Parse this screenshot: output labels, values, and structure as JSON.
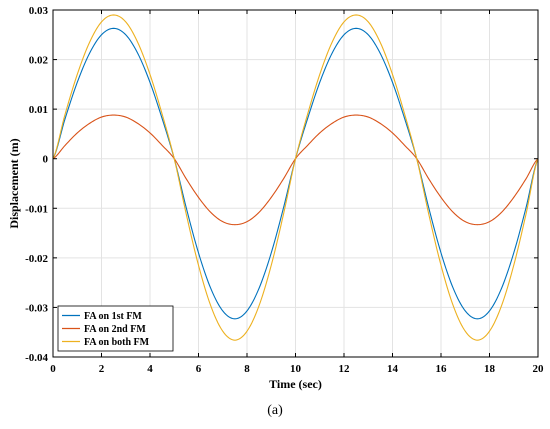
{
  "caption": "(a)",
  "chart_data": {
    "type": "line",
    "title": "",
    "xlabel": "Time (sec)",
    "ylabel": "Displacement (m)",
    "xlim": [
      0,
      20
    ],
    "ylim": [
      -0.04,
      0.03
    ],
    "x_ticks": [
      0,
      2,
      4,
      6,
      8,
      10,
      12,
      14,
      16,
      18,
      20
    ],
    "x_tick_labels": [
      "0",
      "2",
      "4",
      "6",
      "8",
      "10",
      "12",
      "14",
      "16",
      "18",
      "20"
    ],
    "y_ticks": [
      -0.04,
      -0.03,
      -0.02,
      -0.01,
      0,
      0.01,
      0.02,
      0.03
    ],
    "y_tick_labels": [
      "-0.04",
      "-0.03",
      "-0.02",
      "-0.01",
      "0",
      "0.01",
      "0.02",
      "0.03"
    ],
    "grid": true,
    "legend_position": "bottom-left",
    "series": [
      {
        "name": "FA on 1st FM",
        "color": "#0072BD",
        "x": [
          0,
          0.5,
          1,
          1.5,
          2,
          2.5,
          3,
          3.5,
          4,
          4.5,
          5,
          5.5,
          6,
          6.5,
          7,
          7.5,
          8,
          8.5,
          9,
          9.5,
          10,
          10.5,
          11,
          11.5,
          12,
          12.5,
          13,
          13.5,
          14,
          14.5,
          15,
          15.5,
          16,
          16.5,
          17,
          17.5,
          18,
          18.5,
          19,
          19.5,
          20
        ],
        "values": [
          0,
          0.0081,
          0.0154,
          0.0212,
          0.025,
          0.0263,
          0.025,
          0.0212,
          0.0154,
          0.0081,
          0,
          -0.01,
          -0.019,
          -0.0261,
          -0.0307,
          -0.0323,
          -0.0307,
          -0.0261,
          -0.019,
          -0.01,
          0,
          0.0081,
          0.0154,
          0.0212,
          0.025,
          0.0263,
          0.025,
          0.0212,
          0.0154,
          0.0081,
          0,
          -0.01,
          -0.019,
          -0.0261,
          -0.0307,
          -0.0323,
          -0.0307,
          -0.0261,
          -0.019,
          -0.01,
          0
        ]
      },
      {
        "name": "FA on 2nd FM",
        "color": "#D95319",
        "x": [
          0,
          0.5,
          1,
          1.5,
          2,
          2.5,
          3,
          3.5,
          4,
          4.5,
          5,
          5.5,
          6,
          6.5,
          7,
          7.5,
          8,
          8.5,
          9,
          9.5,
          10,
          10.5,
          11,
          11.5,
          12,
          12.5,
          13,
          13.5,
          14,
          14.5,
          15,
          15.5,
          16,
          16.5,
          17,
          17.5,
          18,
          18.5,
          19,
          19.5,
          20
        ],
        "values": [
          0,
          0.0027,
          0.0052,
          0.0071,
          0.0084,
          0.0088,
          0.0084,
          0.0071,
          0.0052,
          0.0027,
          0,
          -0.0041,
          -0.0078,
          -0.0108,
          -0.0127,
          -0.0133,
          -0.0127,
          -0.0108,
          -0.0078,
          -0.0041,
          0,
          0.0027,
          0.0052,
          0.0071,
          0.0084,
          0.0088,
          0.0084,
          0.0071,
          0.0052,
          0.0027,
          0,
          -0.0041,
          -0.0078,
          -0.0108,
          -0.0127,
          -0.0133,
          -0.0127,
          -0.0108,
          -0.0078,
          -0.0041,
          0
        ]
      },
      {
        "name": "FA on both FM",
        "color": "#EDB120",
        "x": [
          0,
          0.5,
          1,
          1.5,
          2,
          2.5,
          3,
          3.5,
          4,
          4.5,
          5,
          5.5,
          6,
          6.5,
          7,
          7.5,
          8,
          8.5,
          9,
          9.5,
          10,
          10.5,
          11,
          11.5,
          12,
          12.5,
          13,
          13.5,
          14,
          14.5,
          15,
          15.5,
          16,
          16.5,
          17,
          17.5,
          18,
          18.5,
          19,
          19.5,
          20
        ],
        "values": [
          0,
          0.009,
          0.017,
          0.0234,
          0.0276,
          0.029,
          0.0276,
          0.0234,
          0.017,
          0.009,
          0,
          -0.0113,
          -0.0215,
          -0.0296,
          -0.0348,
          -0.0366,
          -0.0348,
          -0.0296,
          -0.0215,
          -0.0113,
          0,
          0.009,
          0.017,
          0.0234,
          0.0276,
          0.029,
          0.0276,
          0.0234,
          0.017,
          0.009,
          0,
          -0.0113,
          -0.0215,
          -0.0296,
          -0.0348,
          -0.0366,
          -0.0348,
          -0.0296,
          -0.0215,
          -0.0113,
          0
        ]
      }
    ]
  }
}
